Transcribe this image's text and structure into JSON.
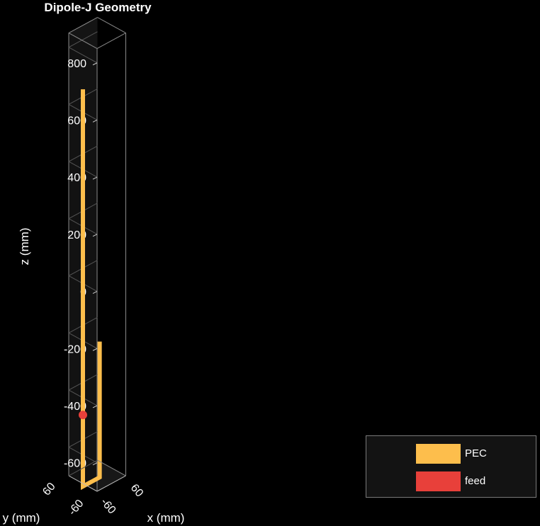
{
  "chart_data": {
    "type": "line",
    "title": "Dipole-J Geometry",
    "projection": "3d",
    "background": "#000000",
    "axes": {
      "x": {
        "label": "x (mm)",
        "range": [
          -60,
          60
        ],
        "ticks": [
          -60,
          60
        ]
      },
      "y": {
        "label": "y (mm)",
        "range": [
          -60,
          60
        ],
        "ticks": [
          60,
          -60
        ]
      },
      "z": {
        "label": "z (mm)",
        "range": [
          -700,
          850
        ],
        "ticks": [
          800,
          600,
          400,
          200,
          0,
          -200,
          -400,
          -600
        ]
      }
    },
    "grid": true,
    "legend_position": "bottom-right",
    "series": [
      {
        "name": "PEC",
        "kind": "line",
        "color": "#fdbe4c",
        "points": [
          {
            "x": -60,
            "y": 0,
            "z": 680
          },
          {
            "x": -60,
            "y": 0,
            "z": -710
          },
          {
            "x": 10,
            "y": 0,
            "z": -710
          },
          {
            "x": 10,
            "y": 0,
            "z": -235
          }
        ]
      },
      {
        "name": "feed",
        "kind": "marker",
        "color": "#e8403a",
        "points": [
          {
            "x": -60,
            "y": 0,
            "z": -460
          }
        ]
      }
    ]
  }
}
